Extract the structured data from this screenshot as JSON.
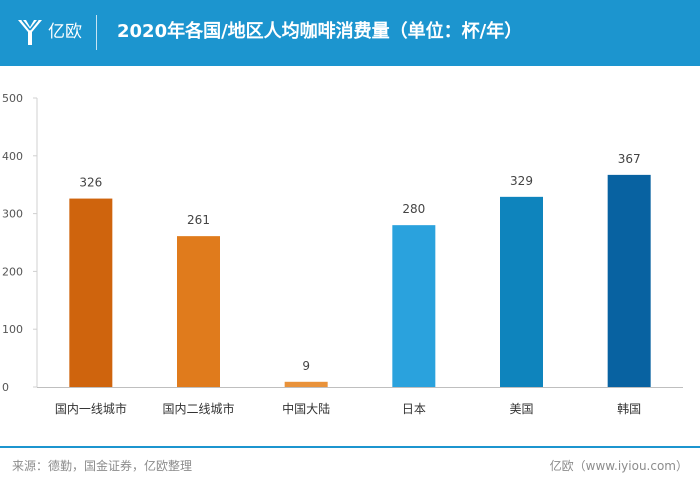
{
  "header": {
    "logo_text": "亿欧",
    "title": "2020年各国/地区人均咖啡消费量（单位：杯/年）",
    "background_color": "#1c95cf"
  },
  "chart_data": {
    "type": "bar",
    "title": "2020年各国/地区人均咖啡消费量（单位：杯/年）",
    "xlabel": "",
    "ylabel": "",
    "categories": [
      "国内一线城市",
      "国内二线城市",
      "中国大陆",
      "日本",
      "美国",
      "韩国"
    ],
    "values": [
      326,
      261,
      9,
      280,
      329,
      367
    ],
    "value_labels": [
      "326",
      "261",
      "9",
      "280",
      "329",
      "367"
    ],
    "colors": [
      "#cf640d",
      "#e07b1c",
      "#e9923a",
      "#2aa2dd",
      "#0e84bd",
      "#0862a1"
    ],
    "ylim": [
      0,
      500
    ],
    "yticks": [
      0,
      100,
      200,
      300,
      400,
      500
    ],
    "ytick_labels": [
      "0",
      "100",
      "200",
      "300",
      "400",
      "500"
    ],
    "grid": false,
    "legend": "none"
  },
  "footer": {
    "source": "来源：德勤，国金证券，亿欧整理",
    "brand": "亿欧（www.iyiou.com）"
  }
}
